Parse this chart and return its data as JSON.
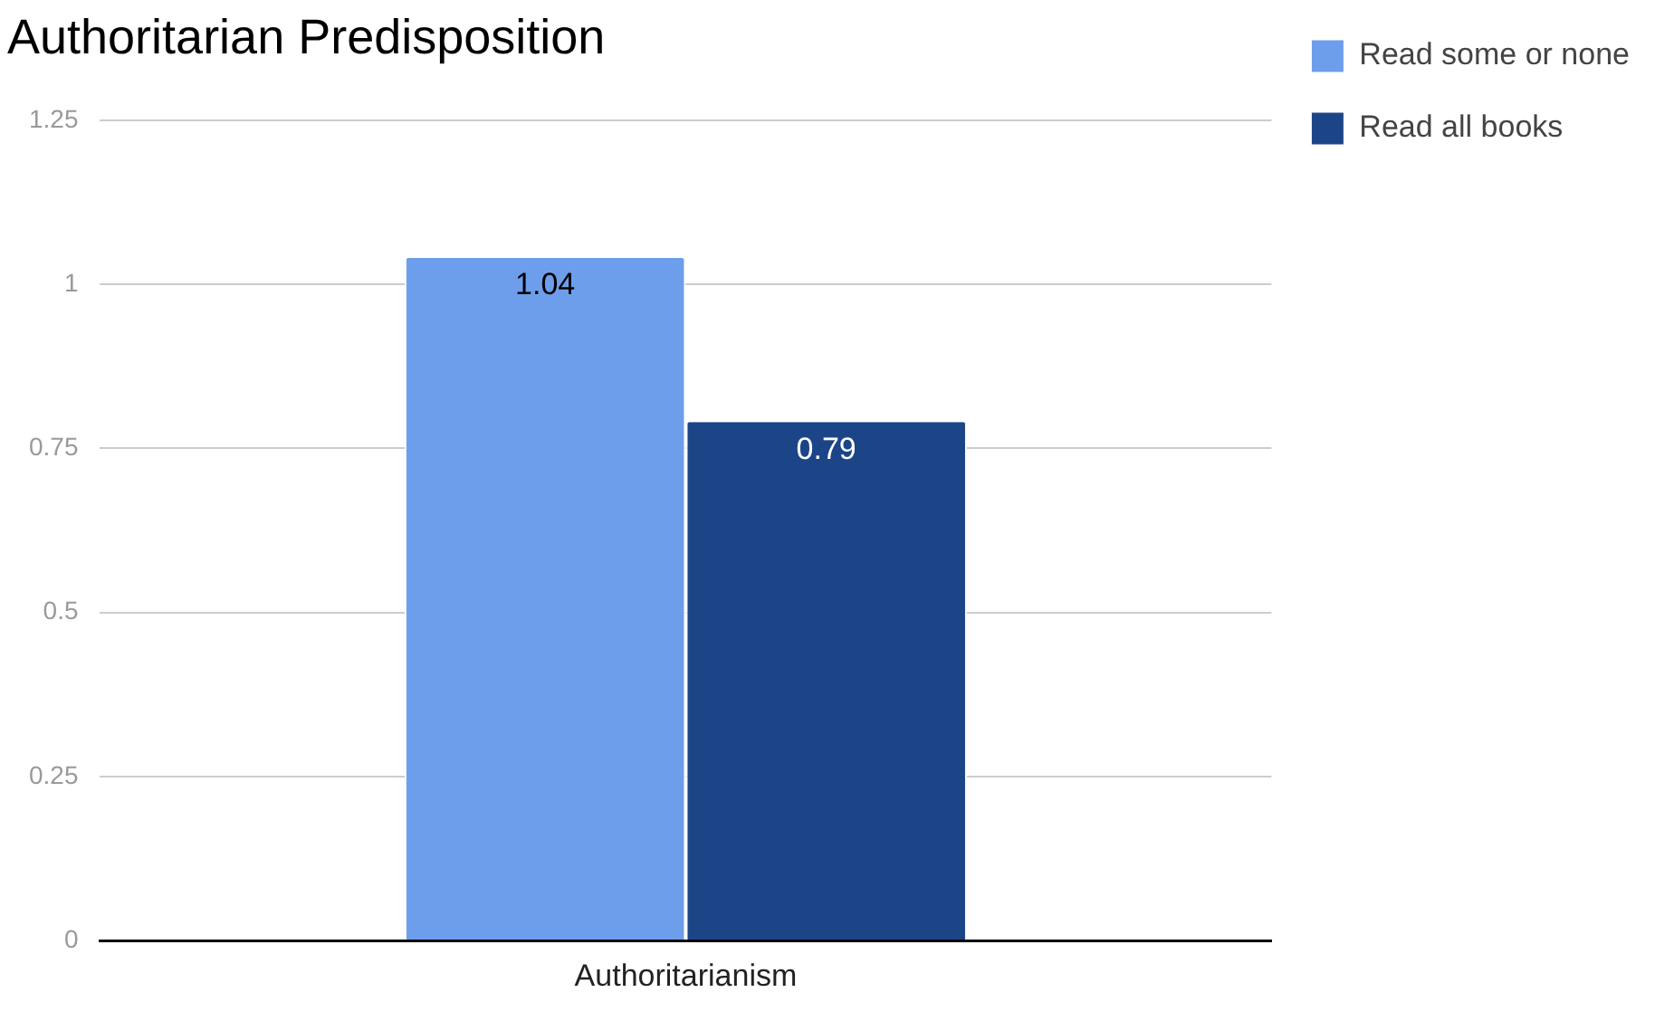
{
  "chart_data": {
    "type": "bar",
    "title": "Authoritarian Predisposition",
    "categories": [
      "Authoritarianism"
    ],
    "series": [
      {
        "name": "Read some or none",
        "color": "#6d9eeb",
        "values": [
          1.04
        ]
      },
      {
        "name": "Read all books",
        "color": "#1c4587",
        "values": [
          0.79
        ]
      }
    ],
    "ylim": [
      0,
      1.25
    ],
    "yticks": [
      0,
      0.25,
      0.5,
      0.75,
      1,
      1.25
    ],
    "grid": "y",
    "legend": "right",
    "data_labels": true
  }
}
